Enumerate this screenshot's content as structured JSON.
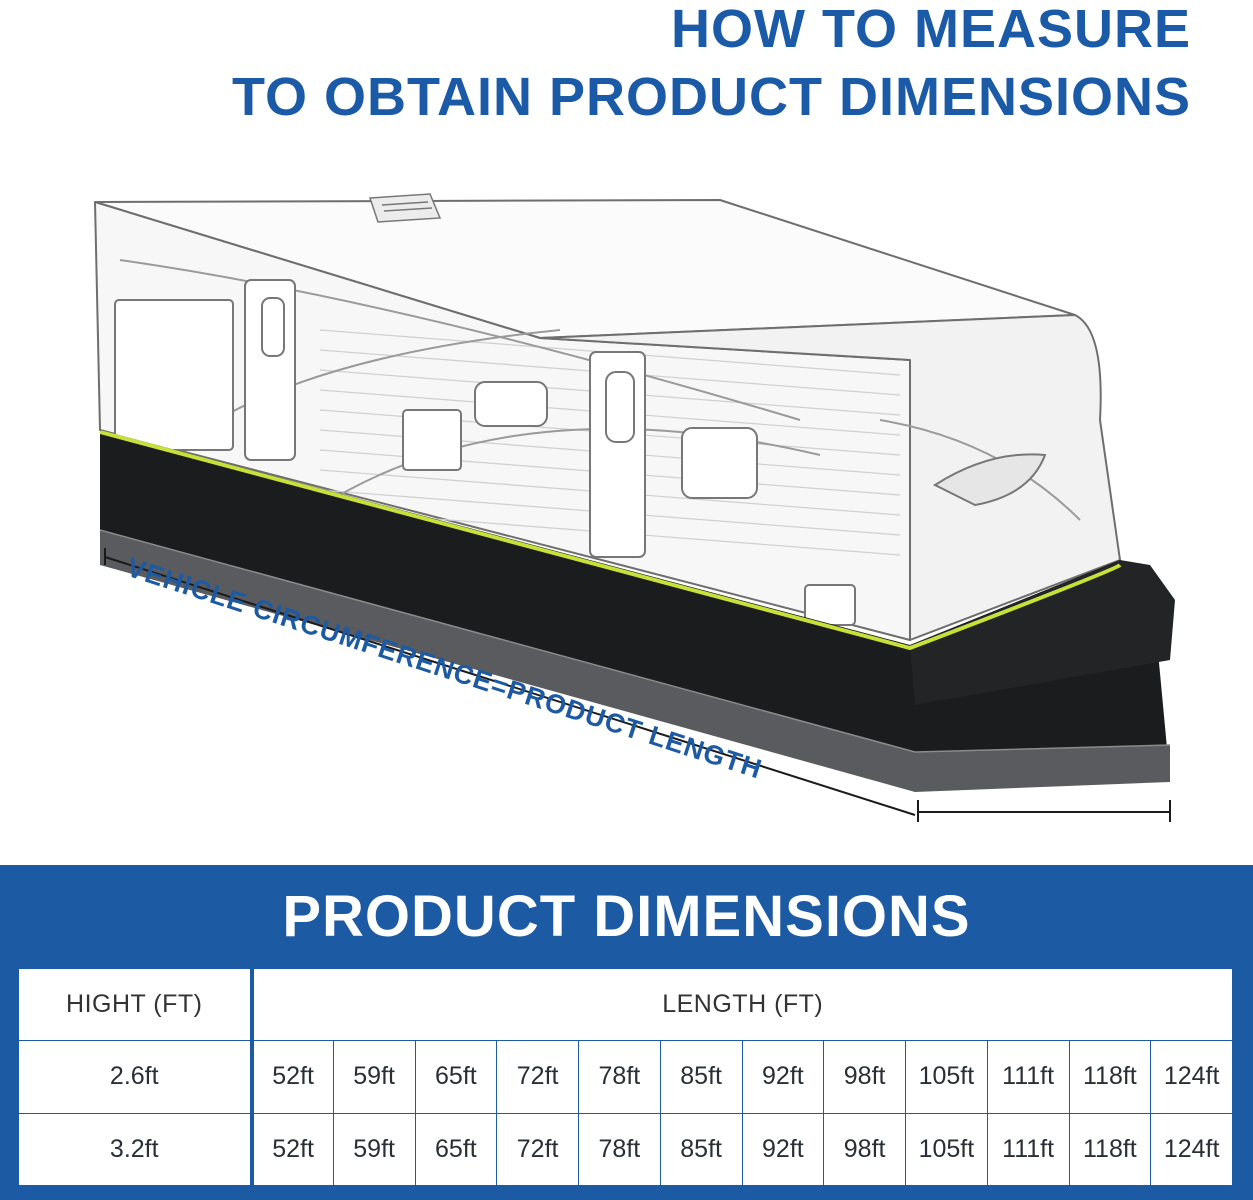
{
  "title": {
    "line1": "HOW TO MEASURE",
    "line2": "TO OBTAIN PRODUCT DIMENSIONS"
  },
  "measurement_label": "VEHICLE CIRCUMFERENCE=PRODUCT LENGTH",
  "colors": {
    "brand_blue": "#1c5aa3",
    "skirt_black": "#1b1c1e",
    "trim_green": "#c8e03a"
  },
  "panel": {
    "title": "PRODUCT DIMENSIONS",
    "table": {
      "height_header": "HIGHT (FT)",
      "length_header": "LENGTH (FT)",
      "rows": [
        {
          "height": "2.6ft",
          "lengths": [
            "52ft",
            "59ft",
            "65ft",
            "72ft",
            "78ft",
            "85ft",
            "92ft",
            "98ft",
            "105ft",
            "111ft",
            "118ft",
            "124ft"
          ]
        },
        {
          "height": "3.2ft",
          "lengths": [
            "52ft",
            "59ft",
            "65ft",
            "72ft",
            "78ft",
            "85ft",
            "92ft",
            "98ft",
            "105ft",
            "111ft",
            "118ft",
            "124ft"
          ]
        }
      ]
    }
  }
}
